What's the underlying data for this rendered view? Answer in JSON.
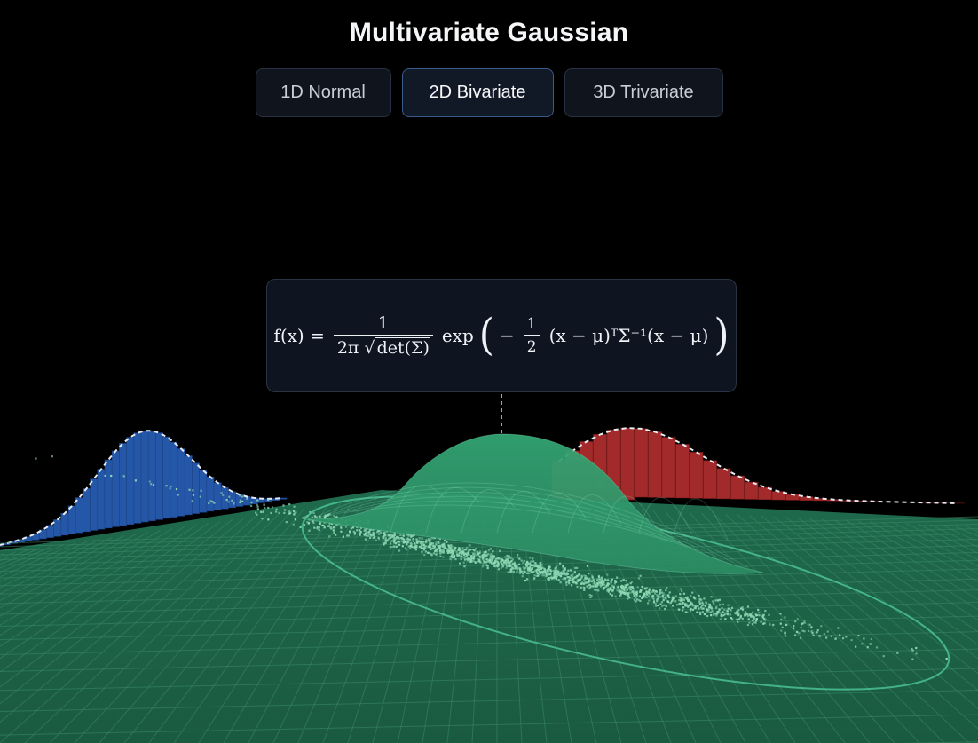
{
  "page": {
    "title": "Multivariate Gaussian"
  },
  "tabs": [
    {
      "label": "1D Normal",
      "active": false
    },
    {
      "label": "2D Bivariate",
      "active": true
    },
    {
      "label": "3D Trivariate",
      "active": false
    }
  ],
  "formula": {
    "lhs": "f(x) =",
    "numerator": "1",
    "denominator_prefix": "2π",
    "denominator_root": "det(Σ)",
    "exp": "exp",
    "half_num": "1",
    "half_den": "2",
    "quad_form": "(x − μ)ᵀΣ⁻¹(x − μ)"
  },
  "colors": {
    "background": "#000000",
    "surface": "#2f9a6c",
    "grid_floor": "#1b5e45",
    "marginal_x": "#2457a8",
    "marginal_y": "#a32a2a",
    "samples": "#8fd9b5"
  }
}
